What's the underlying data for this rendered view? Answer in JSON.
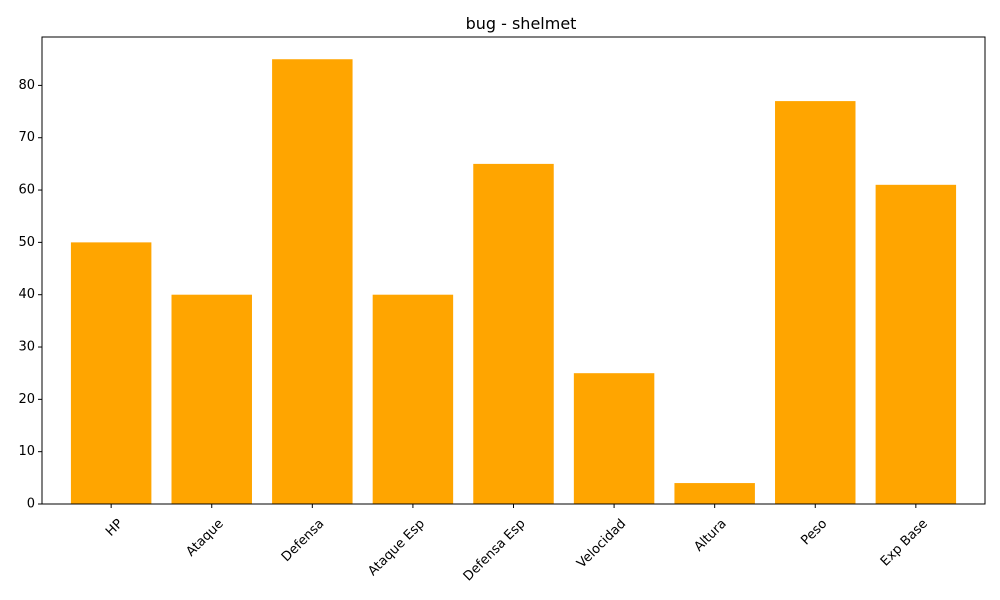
{
  "chart_data": {
    "type": "bar",
    "title": "bug - shelmet",
    "xlabel": "",
    "ylabel": "",
    "categories": [
      "HP",
      "Ataque",
      "Defensa",
      "Ataque Esp",
      "Defensa Esp",
      "Velocidad",
      "Altura",
      "Peso",
      "Exp Base"
    ],
    "values": [
      50,
      40,
      85,
      40,
      65,
      25,
      4,
      77,
      61
    ],
    "ylim": [
      0,
      89.25
    ],
    "yticks": [
      0,
      10,
      20,
      30,
      40,
      50,
      60,
      70,
      80
    ],
    "bar_color": "#FFA500",
    "grid": false,
    "xtick_rotation": 45
  }
}
